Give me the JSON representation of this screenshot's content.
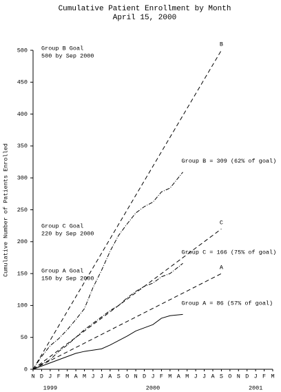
{
  "chart_data": {
    "type": "line",
    "title": "Cumulative Patient Enrollment by Month",
    "subtitle": "April 15, 2000",
    "ylabel": "Cumulative Number of Patients Enrolled",
    "xlim": [
      0,
      28
    ],
    "ylim": [
      0,
      500
    ],
    "yticks": [
      0,
      50,
      100,
      150,
      200,
      250,
      300,
      350,
      400,
      450,
      500
    ],
    "xticks": [
      {
        "value": 0,
        "label": "N"
      },
      {
        "value": 1,
        "label": "D"
      },
      {
        "value": 2,
        "label": "J"
      },
      {
        "value": 3,
        "label": "F"
      },
      {
        "value": 4,
        "label": "M"
      },
      {
        "value": 5,
        "label": "A"
      },
      {
        "value": 6,
        "label": "M"
      },
      {
        "value": 7,
        "label": "J"
      },
      {
        "value": 8,
        "label": "J"
      },
      {
        "value": 9,
        "label": "A"
      },
      {
        "value": 10,
        "label": "S"
      },
      {
        "value": 11,
        "label": "O"
      },
      {
        "value": 12,
        "label": "N"
      },
      {
        "value": 13,
        "label": "D"
      },
      {
        "value": 14,
        "label": "J"
      },
      {
        "value": 15,
        "label": "F"
      },
      {
        "value": 16,
        "label": "M"
      },
      {
        "value": 17,
        "label": "A"
      },
      {
        "value": 18,
        "label": "M"
      },
      {
        "value": 19,
        "label": "J"
      },
      {
        "value": 20,
        "label": "J"
      },
      {
        "value": 21,
        "label": "A"
      },
      {
        "value": 22,
        "label": "S"
      },
      {
        "value": 23,
        "label": "O"
      },
      {
        "value": 24,
        "label": "N"
      },
      {
        "value": 25,
        "label": "D"
      },
      {
        "value": 26,
        "label": "J"
      },
      {
        "value": 27,
        "label": "F"
      },
      {
        "value": 28,
        "label": "M"
      }
    ],
    "year_labels": [
      {
        "value": 2,
        "label": "1999"
      },
      {
        "value": 14,
        "label": "2000"
      },
      {
        "value": 26,
        "label": "2001"
      }
    ],
    "series": [
      {
        "label": "B",
        "style": "dashed",
        "x": [
          0,
          22
        ],
        "values": [
          0,
          500
        ]
      },
      {
        "label": "C",
        "style": "dashed",
        "x": [
          0,
          22
        ],
        "values": [
          0,
          220
        ]
      },
      {
        "label": "A",
        "style": "dashed",
        "x": [
          0,
          22
        ],
        "values": [
          0,
          150
        ]
      },
      {
        "label": "Group B = 309 (62% of goal)",
        "style": "dashdot",
        "x": [
          0,
          1,
          2,
          3,
          4,
          5,
          6,
          7,
          8,
          9,
          10,
          11,
          12,
          13,
          14,
          15,
          16,
          17.5
        ],
        "values": [
          0,
          20,
          37,
          48,
          62,
          78,
          95,
          128,
          155,
          185,
          210,
          228,
          245,
          255,
          262,
          278,
          284,
          309
        ]
      },
      {
        "label": "Group C = 166 (75% of goal)",
        "style": "dashdot",
        "x": [
          0,
          1,
          2,
          3,
          4,
          5,
          6,
          7,
          8,
          9,
          10,
          11,
          12,
          13,
          14,
          15,
          16,
          17.5
        ],
        "values": [
          0,
          8,
          15,
          28,
          38,
          50,
          62,
          72,
          82,
          92,
          100,
          112,
          122,
          130,
          135,
          145,
          150,
          166
        ]
      },
      {
        "label": "Group A = 86 (57% of goal)",
        "style": "solid",
        "x": [
          0,
          1,
          2,
          3,
          4,
          5,
          6,
          7,
          8,
          9,
          10,
          11,
          12,
          13,
          14,
          15,
          16,
          17.5
        ],
        "values": [
          0,
          5,
          10,
          15,
          20,
          25,
          28,
          30,
          32,
          38,
          45,
          52,
          60,
          65,
          70,
          80,
          84,
          86
        ]
      }
    ],
    "annotations": [
      "Group B Goal",
      "500 by Sep 2000",
      "Group C Goal",
      "220 by Sep 2000",
      "Group A Goal",
      "150 by Sep 2000"
    ]
  }
}
